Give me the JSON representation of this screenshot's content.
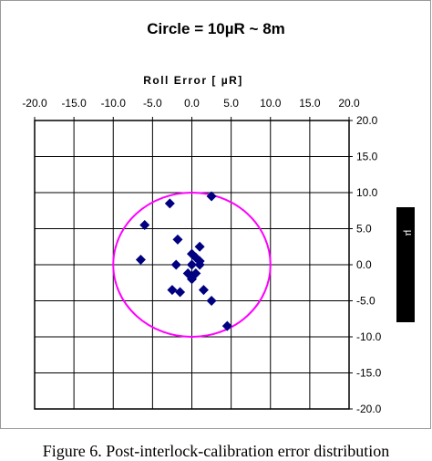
{
  "chart_data": {
    "type": "scatter",
    "title": "Circle = 10µR ~ 8m",
    "xlabel": "Roll Error [ µR]",
    "ylabel": "µ",
    "xlim": [
      -20,
      20
    ],
    "ylim": [
      -20,
      20
    ],
    "x_ticks": [
      "-20.0",
      "-15.0",
      "-10.0",
      "-5.0",
      "0.0",
      "5.0",
      "10.0",
      "15.0",
      "20.0"
    ],
    "y_ticks": [
      "20.0",
      "15.0",
      "10.0",
      "5.0",
      "0.0",
      "-5.0",
      "-10.0",
      "-15.0",
      "-20.0"
    ],
    "grid": true,
    "circle": {
      "center": [
        0,
        0
      ],
      "radius": 10,
      "color": "#ff00ff"
    },
    "marker_color": "#000080",
    "points": [
      {
        "x": 2.5,
        "y": 9.5
      },
      {
        "x": -2.8,
        "y": 8.5
      },
      {
        "x": -6.0,
        "y": 5.5
      },
      {
        "x": -1.8,
        "y": 3.5
      },
      {
        "x": -6.5,
        "y": 0.7
      },
      {
        "x": 1.0,
        "y": 2.5
      },
      {
        "x": 0.0,
        "y": 1.5
      },
      {
        "x": 0.5,
        "y": 1.0
      },
      {
        "x": 1.0,
        "y": 0.5
      },
      {
        "x": -2.0,
        "y": 0.0
      },
      {
        "x": 0.0,
        "y": 0.0
      },
      {
        "x": 1.0,
        "y": 0.0
      },
      {
        "x": -0.5,
        "y": -1.2
      },
      {
        "x": 0.5,
        "y": -1.2
      },
      {
        "x": 0.0,
        "y": -2.0
      },
      {
        "x": 1.5,
        "y": -3.5
      },
      {
        "x": -2.5,
        "y": -3.5
      },
      {
        "x": -1.5,
        "y": -3.8
      },
      {
        "x": 2.5,
        "y": -5.0
      },
      {
        "x": 4.5,
        "y": -8.5
      }
    ]
  },
  "caption": "Figure 6.  Post-interlock-calibration error distribution"
}
